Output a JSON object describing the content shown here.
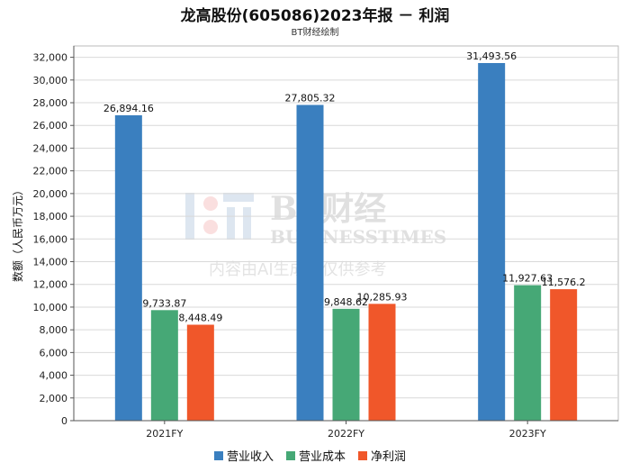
{
  "title": "龙高股份(605086)2023年报 － 利润",
  "subtitle": "BT财经绘制",
  "watermark": {
    "brand_cn": "BT财经",
    "brand_en": "BUSINESSTIMES",
    "notice": "内容由AI生成，仅供参考"
  },
  "chart_data": {
    "type": "bar",
    "title": "龙高股份(605086)2023年报 － 利润",
    "subtitle": "BT财经绘制",
    "xlabel": "",
    "ylabel": "数额（人民币万元）",
    "ylim": [
      0,
      33000
    ],
    "yticks": [
      0,
      2000,
      4000,
      6000,
      8000,
      10000,
      12000,
      14000,
      16000,
      18000,
      20000,
      22000,
      24000,
      26000,
      28000,
      30000,
      32000
    ],
    "ytick_labels": [
      "0",
      "2,000",
      "4,000",
      "6,000",
      "8,000",
      "10,000",
      "12,000",
      "14,000",
      "16,000",
      "18,000",
      "20,000",
      "22,000",
      "24,000",
      "26,000",
      "28,000",
      "30,000",
      "32,000"
    ],
    "grid": true,
    "legend_position": "bottom",
    "categories": [
      "2021FY",
      "2022FY",
      "2023FY"
    ],
    "series": [
      {
        "name": "营业收入",
        "color": "#3a7fbf",
        "values": [
          26894.16,
          27805.32,
          31493.56
        ],
        "labels": [
          "26,894.16",
          "27,805.32",
          "31,493.56"
        ]
      },
      {
        "name": "营业成本",
        "color": "#46a876",
        "values": [
          9733.87,
          9848.62,
          11927.63
        ],
        "labels": [
          "9,733.87",
          "9,848.62",
          "11,927.63"
        ]
      },
      {
        "name": "净利润",
        "color": "#f0572a",
        "values": [
          8448.49,
          10285.93,
          11576.2
        ],
        "labels": [
          "8,448.49",
          "10,285.93",
          "11,576.2"
        ]
      }
    ]
  }
}
